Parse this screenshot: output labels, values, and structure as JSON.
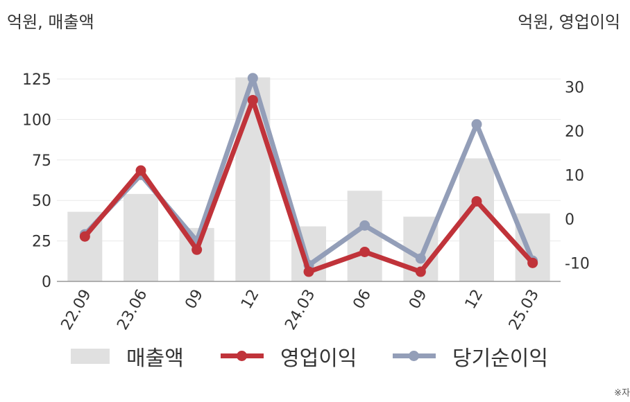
{
  "units": {
    "left": "억원, 매출액",
    "right": "억원, 영업이익"
  },
  "colors": {
    "revenue": "#e0e0e0",
    "operating_profit": "#c0333a",
    "net_income": "#939eb8",
    "grid": "#e8e8e8",
    "axis": "#999999"
  },
  "legend": {
    "revenue": "매출액",
    "operating_profit": "영업이익",
    "net_income": "당기순이익"
  },
  "note": "※자",
  "chart_data": {
    "type": "bar",
    "categories": [
      "22.09",
      "23.06",
      "09",
      "12",
      "24.03",
      "06",
      "09",
      "12",
      "25.03"
    ],
    "y_left": {
      "ticks": [
        0,
        25,
        50,
        75,
        100,
        125
      ],
      "ylim": [
        0,
        131
      ]
    },
    "y_right": {
      "ticks": [
        -10,
        0,
        10,
        20,
        30
      ],
      "ylim": [
        -14.2,
        34
      ]
    },
    "grid": true,
    "legend_position": "bottom",
    "series": [
      {
        "name": "매출액",
        "type": "bar",
        "axis": "left",
        "values": [
          43,
          54,
          33,
          126,
          34,
          56,
          40,
          76,
          42
        ]
      },
      {
        "name": "영업이익",
        "type": "line",
        "axis": "right",
        "values": [
          -4,
          11,
          -7,
          27,
          -12,
          -7.5,
          -12,
          4,
          -10
        ]
      },
      {
        "name": "당기순이익",
        "type": "line",
        "axis": "right",
        "values": [
          -3.5,
          10,
          -5,
          32,
          -10.5,
          -1.5,
          -9,
          21.5,
          -9.5
        ]
      }
    ]
  }
}
